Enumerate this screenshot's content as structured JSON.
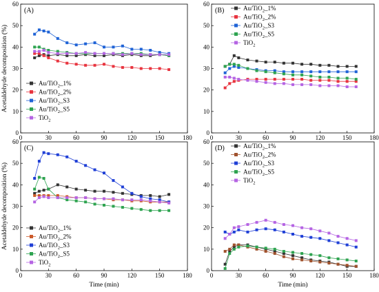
{
  "figure": {
    "shared_xlabel": "Time (min)",
    "shared_ylabel": "Acetaldehyde decomposition (%)"
  },
  "chart_data": [
    {
      "type": "line",
      "panel_label": "(A)",
      "xlabel": "",
      "ylabel": "Acetaldehyde decomposition (%)",
      "xlim": [
        0,
        180
      ],
      "ylim": [
        0,
        60
      ],
      "xticks": [
        0,
        30,
        60,
        90,
        120,
        150,
        180
      ],
      "yticks": [
        0,
        10,
        20,
        30,
        40,
        50,
        60
      ],
      "xtick_labels": [
        "0",
        "30",
        "60",
        "90",
        "120",
        "150",
        "180"
      ],
      "ytick_labels": [
        "0",
        "10",
        "20",
        "30",
        "40",
        "50",
        "60"
      ],
      "legend_position": "left",
      "series": [
        {
          "name": "Au/TiO2_1%",
          "name_main": "Au/TiO",
          "name_sub": "2",
          "name_tail": "_1%",
          "color": "#333333",
          "x": [
            15,
            20,
            25,
            30,
            40,
            50,
            60,
            70,
            80,
            90,
            100,
            110,
            120,
            130,
            140,
            150,
            160
          ],
          "y": [
            35,
            36,
            36.5,
            36,
            36.5,
            36,
            36,
            36.5,
            36,
            36,
            36.5,
            36,
            36.5,
            36,
            36,
            36.5,
            36
          ]
        },
        {
          "name": "Au/TiO2_2%",
          "name_main": "Au/TiO",
          "name_sub": "2",
          "name_tail": "_2%",
          "color": "#e8343f",
          "x": [
            15,
            20,
            25,
            30,
            40,
            50,
            60,
            70,
            80,
            90,
            100,
            110,
            120,
            130,
            140,
            150,
            160
          ],
          "y": [
            37,
            37,
            36,
            35,
            33.5,
            32.5,
            32,
            31.5,
            31.5,
            32,
            31,
            30.5,
            30.5,
            30,
            30,
            30,
            29.5
          ]
        },
        {
          "name": "Au/TiO2_S3",
          "name_main": "Au/TiO",
          "name_sub": "2",
          "name_tail": "_S3",
          "color": "#1f63d6",
          "x": [
            15,
            20,
            25,
            30,
            40,
            50,
            60,
            70,
            80,
            90,
            100,
            110,
            120,
            130,
            140,
            150,
            160
          ],
          "y": [
            46,
            48,
            47.5,
            47,
            44,
            42,
            41,
            41.5,
            42,
            40,
            40,
            40.5,
            39,
            39,
            38.5,
            37.5,
            37
          ]
        },
        {
          "name": "Au/TiO2_S5",
          "name_main": "Au/TiO",
          "name_sub": "2",
          "name_tail": "_S5",
          "color": "#2ea350",
          "x": [
            15,
            20,
            25,
            30,
            40,
            50,
            60,
            70,
            80,
            90,
            100,
            110,
            120,
            130,
            140,
            150,
            160
          ],
          "y": [
            40,
            40,
            39,
            38.5,
            38,
            37.5,
            37,
            37,
            37,
            37,
            37,
            37,
            37,
            37,
            36.5,
            36.5,
            36
          ]
        },
        {
          "name": "TiO2",
          "name_main": "TiO",
          "name_sub": "2",
          "name_tail": "",
          "color": "#b564e3",
          "x": [
            15,
            20,
            25,
            30,
            40,
            50,
            60,
            70,
            80,
            90,
            100,
            110,
            120,
            130,
            140,
            150,
            160
          ],
          "y": [
            38,
            38,
            38.5,
            37.5,
            37,
            37,
            37,
            37.5,
            37,
            37,
            37,
            36.5,
            37,
            36.5,
            36.5,
            36.5,
            36.5
          ]
        }
      ]
    },
    {
      "type": "line",
      "panel_label": "(B)",
      "xlabel": "",
      "ylabel": "",
      "xlim": [
        0,
        180
      ],
      "ylim": [
        0,
        60
      ],
      "xticks": [
        0,
        30,
        60,
        90,
        120,
        150,
        180
      ],
      "yticks": [
        0,
        10,
        20,
        30,
        40,
        50,
        60
      ],
      "xtick_labels": [
        "0",
        "30",
        "60",
        "90",
        "120",
        "150",
        "180"
      ],
      "ytick_labels": [
        "0",
        "10",
        "20",
        "30",
        "40",
        "50",
        "60"
      ],
      "legend_position": "top-left",
      "series": [
        {
          "name": "Au/TiO2_1%",
          "name_main": "Au/TiO",
          "name_sub": "2",
          "name_tail": "_1%",
          "color": "#333333",
          "x": [
            15,
            20,
            25,
            30,
            40,
            50,
            60,
            70,
            80,
            90,
            100,
            110,
            120,
            130,
            140,
            150,
            160
          ],
          "y": [
            31,
            32,
            36,
            35,
            34,
            33.5,
            33,
            33,
            32.5,
            32.5,
            32,
            32,
            31.5,
            31.5,
            31,
            31,
            31
          ]
        },
        {
          "name": "Au/TiO2_2%",
          "name_main": "Au/TiO",
          "name_sub": "2",
          "name_tail": "_2%",
          "color": "#e8343f",
          "x": [
            15,
            20,
            25,
            30,
            40,
            50,
            60,
            70,
            80,
            90,
            100,
            110,
            120,
            130,
            140,
            150,
            160
          ],
          "y": [
            21,
            23,
            24,
            24.5,
            25,
            25,
            25,
            25,
            25,
            25,
            25,
            24.5,
            24.5,
            24.5,
            24,
            24,
            24
          ]
        },
        {
          "name": "Au/TiO2_S3",
          "name_main": "Au/TiO",
          "name_sub": "2",
          "name_tail": "_S3",
          "color": "#1f63d6",
          "x": [
            15,
            20,
            25,
            30,
            40,
            50,
            60,
            70,
            80,
            90,
            100,
            110,
            120,
            130,
            140,
            150,
            160
          ],
          "y": [
            28,
            30,
            31,
            30.5,
            30,
            29.5,
            29,
            29,
            28.5,
            28.5,
            28.5,
            28.5,
            28.5,
            28.5,
            28.5,
            28.5,
            28.5
          ]
        },
        {
          "name": "Au/TiO2_S5",
          "name_main": "Au/TiO",
          "name_sub": "2",
          "name_tail": "_S5",
          "color": "#2ea350",
          "x": [
            15,
            20,
            25,
            30,
            40,
            50,
            60,
            70,
            80,
            90,
            100,
            110,
            120,
            130,
            140,
            150,
            160
          ],
          "y": [
            31,
            32,
            32,
            31.5,
            30,
            29,
            28.5,
            28,
            27.5,
            27,
            27,
            26.5,
            26,
            26,
            25.5,
            25.5,
            25
          ]
        },
        {
          "name": "TiO2",
          "name_main": "TiO",
          "name_sub": "2",
          "name_tail": "",
          "color": "#b564e3",
          "x": [
            15,
            20,
            25,
            30,
            40,
            50,
            60,
            70,
            80,
            90,
            100,
            110,
            120,
            130,
            140,
            150,
            160
          ],
          "y": [
            26,
            26,
            25.5,
            25,
            24.5,
            24,
            23.5,
            23,
            23,
            22.5,
            22.5,
            22.5,
            22,
            22,
            22,
            21.5,
            21.5
          ]
        }
      ]
    },
    {
      "type": "line",
      "panel_label": "(C)",
      "xlabel": "Time (min)",
      "ylabel": "Acetaldehyde decomposition (%)",
      "xlim": [
        0,
        180
      ],
      "ylim": [
        0,
        60
      ],
      "xticks": [
        0,
        30,
        60,
        90,
        120,
        150,
        180
      ],
      "yticks": [
        0,
        10,
        20,
        30,
        40,
        50,
        60
      ],
      "xtick_labels": [
        "0",
        "30",
        "60",
        "90",
        "120",
        "150",
        "180"
      ],
      "ytick_labels": [
        "0",
        "10",
        "20",
        "30",
        "40",
        "50",
        "60"
      ],
      "legend_position": "bottom-left",
      "series": [
        {
          "name": "Au/TiO2_1%",
          "name_main": "Au/TiO",
          "name_sub": "2",
          "name_tail": "_1%",
          "color": "#333333",
          "x": [
            15,
            20,
            25,
            30,
            40,
            50,
            60,
            70,
            80,
            90,
            100,
            110,
            120,
            130,
            140,
            150,
            160
          ],
          "y": [
            36,
            37,
            37.5,
            38,
            40,
            39,
            38,
            37.5,
            37,
            37,
            36.5,
            36,
            35.5,
            35,
            35,
            34.5,
            35.5
          ]
        },
        {
          "name": "Au/TiO2_2%",
          "name_main": "Au/TiO",
          "name_sub": "2",
          "name_tail": "_2%",
          "color": "#cc5a2a",
          "x": [
            15,
            20,
            25,
            30,
            40,
            50,
            60,
            70,
            80,
            90,
            100,
            110,
            120,
            130,
            140,
            150,
            160
          ],
          "y": [
            35,
            35,
            35,
            35,
            35,
            34.5,
            34,
            34,
            33.5,
            33.5,
            33,
            33,
            32.5,
            32.5,
            32,
            32,
            32
          ]
        },
        {
          "name": "Au/TiO2_S3",
          "name_main": "Au/TiO",
          "name_sub": "2",
          "name_tail": "_S3",
          "color": "#1f3fd6",
          "x": [
            15,
            20,
            25,
            30,
            40,
            50,
            60,
            70,
            80,
            90,
            100,
            110,
            120,
            130,
            140,
            150,
            160
          ],
          "y": [
            43,
            51,
            55,
            54.5,
            54,
            53,
            51,
            49,
            47,
            45.5,
            42,
            39,
            36,
            34.5,
            33.5,
            33,
            32
          ]
        },
        {
          "name": "Au/TiO2_S5",
          "name_main": "Au/TiO",
          "name_sub": "2",
          "name_tail": "_S5",
          "color": "#2ea350",
          "x": [
            15,
            20,
            25,
            30,
            40,
            50,
            60,
            70,
            80,
            90,
            100,
            110,
            120,
            130,
            140,
            150,
            160
          ],
          "y": [
            38,
            43.5,
            43,
            38,
            34,
            33,
            32.5,
            32,
            31,
            30.5,
            30,
            29.5,
            29,
            28.5,
            28,
            28,
            28
          ]
        },
        {
          "name": "TiO2",
          "name_main": "TiO",
          "name_sub": "2",
          "name_tail": "",
          "color": "#b564e3",
          "x": [
            15,
            20,
            25,
            30,
            40,
            50,
            60,
            70,
            80,
            90,
            100,
            110,
            120,
            130,
            140,
            150,
            160
          ],
          "y": [
            32,
            34,
            34.5,
            34,
            34,
            34,
            34,
            34,
            33.5,
            33.5,
            33.5,
            33,
            33,
            33,
            32.5,
            32,
            31.5
          ]
        }
      ]
    },
    {
      "type": "line",
      "panel_label": "(D)",
      "xlabel": "Time (min)",
      "ylabel": "",
      "xlim": [
        0,
        180
      ],
      "ylim": [
        0,
        60
      ],
      "xticks": [
        0,
        30,
        60,
        90,
        120,
        150,
        180
      ],
      "yticks": [
        0,
        10,
        20,
        30,
        40,
        50,
        60
      ],
      "xtick_labels": [
        "0",
        "30",
        "60",
        "90",
        "120",
        "150",
        "180"
      ],
      "ytick_labels": [
        "0",
        "10",
        "20",
        "30",
        "40",
        "50",
        "60"
      ],
      "legend_position": "top-left",
      "series": [
        {
          "name": "Au/TiO2_1%",
          "name_main": "Au/TiO",
          "name_sub": "2",
          "name_tail": "_1%",
          "color": "#333333",
          "x": [
            15,
            20,
            25,
            30,
            40,
            50,
            60,
            70,
            80,
            90,
            100,
            110,
            120,
            130,
            140,
            150,
            160
          ],
          "y": [
            3,
            9,
            11,
            12,
            12,
            11,
            10,
            9,
            8,
            7,
            6,
            5,
            4.5,
            4,
            3,
            2,
            2
          ]
        },
        {
          "name": "Au/TiO2_2%",
          "name_main": "Au/TiO",
          "name_sub": "2",
          "name_tail": "_2%",
          "color": "#a0522d",
          "x": [
            15,
            20,
            25,
            30,
            40,
            50,
            60,
            70,
            80,
            90,
            100,
            110,
            120,
            130,
            140,
            150,
            160
          ],
          "y": [
            9,
            10,
            12,
            12,
            11,
            10,
            9,
            8,
            6.5,
            5.5,
            5,
            4.5,
            4,
            3.5,
            3,
            2.5,
            2
          ]
        },
        {
          "name": "Au/TiO2_S3",
          "name_main": "Au/TiO",
          "name_sub": "2",
          "name_tail": "_S3",
          "color": "#1f3fd6",
          "x": [
            15,
            20,
            25,
            30,
            40,
            50,
            60,
            70,
            80,
            90,
            100,
            110,
            120,
            130,
            140,
            150,
            160
          ],
          "y": [
            18,
            17,
            18,
            19,
            18,
            19,
            19.5,
            19,
            18,
            17,
            16,
            15.5,
            15,
            14,
            13,
            12,
            11
          ]
        },
        {
          "name": "Au/TiO2_S5",
          "name_main": "Au/TiO",
          "name_sub": "2",
          "name_tail": "_S5",
          "color": "#2ea350",
          "x": [
            15,
            20,
            25,
            30,
            40,
            50,
            60,
            70,
            80,
            90,
            100,
            110,
            120,
            130,
            140,
            150,
            160
          ],
          "y": [
            1,
            8,
            10,
            11,
            11.5,
            11,
            10.5,
            10,
            9,
            8.5,
            8,
            7.5,
            7,
            6,
            5.5,
            5,
            4.5
          ]
        },
        {
          "name": "TiO2",
          "name_main": "TiO",
          "name_sub": "2",
          "name_tail": "",
          "color": "#b564e3",
          "x": [
            15,
            20,
            25,
            30,
            40,
            50,
            60,
            70,
            80,
            90,
            100,
            110,
            120,
            130,
            140,
            150,
            160
          ],
          "y": [
            15,
            17,
            20,
            20.5,
            21.5,
            22.5,
            23.5,
            22.5,
            21.5,
            21,
            20,
            19.5,
            18.5,
            17.5,
            16,
            15,
            14
          ]
        }
      ]
    }
  ]
}
